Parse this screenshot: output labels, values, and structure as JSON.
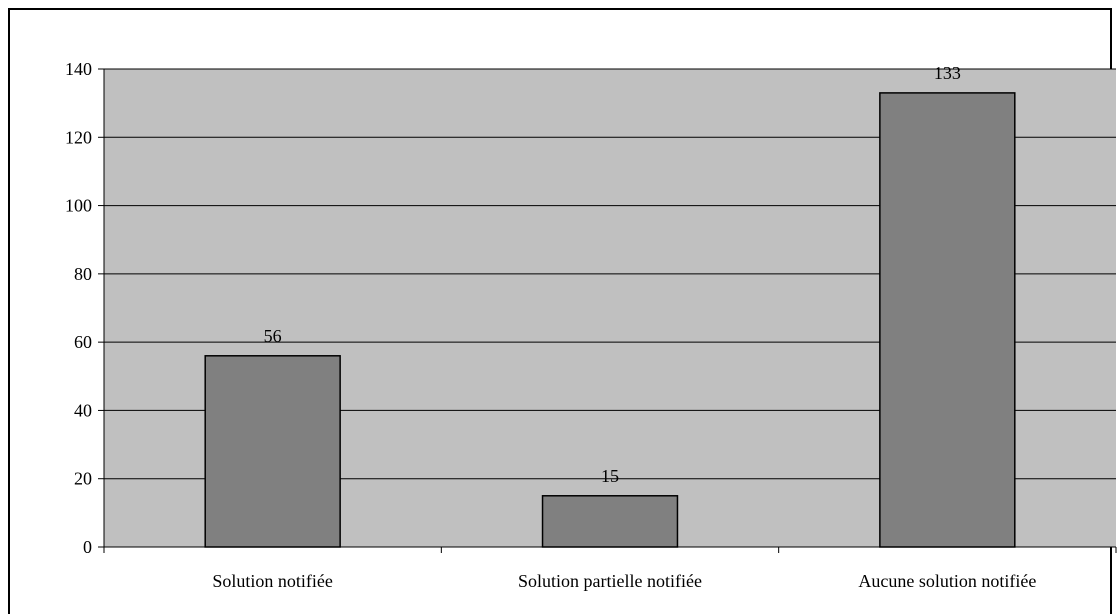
{
  "colors": {
    "plot_background": "#c0c0c0",
    "bar_fill": "#808080",
    "bar_stroke": "#000000",
    "gridline": "#000000"
  },
  "chart_data": {
    "type": "bar",
    "categories": [
      "Solution notifiée",
      "Solution partielle notifiée",
      "Aucune solution notifiée"
    ],
    "values": [
      56,
      15,
      133
    ],
    "data_labels": [
      "56",
      "15",
      "133"
    ],
    "ylim": [
      0,
      140
    ],
    "yticks": [
      0,
      20,
      40,
      60,
      80,
      100,
      120,
      140
    ],
    "grid": true,
    "legend": "none"
  }
}
